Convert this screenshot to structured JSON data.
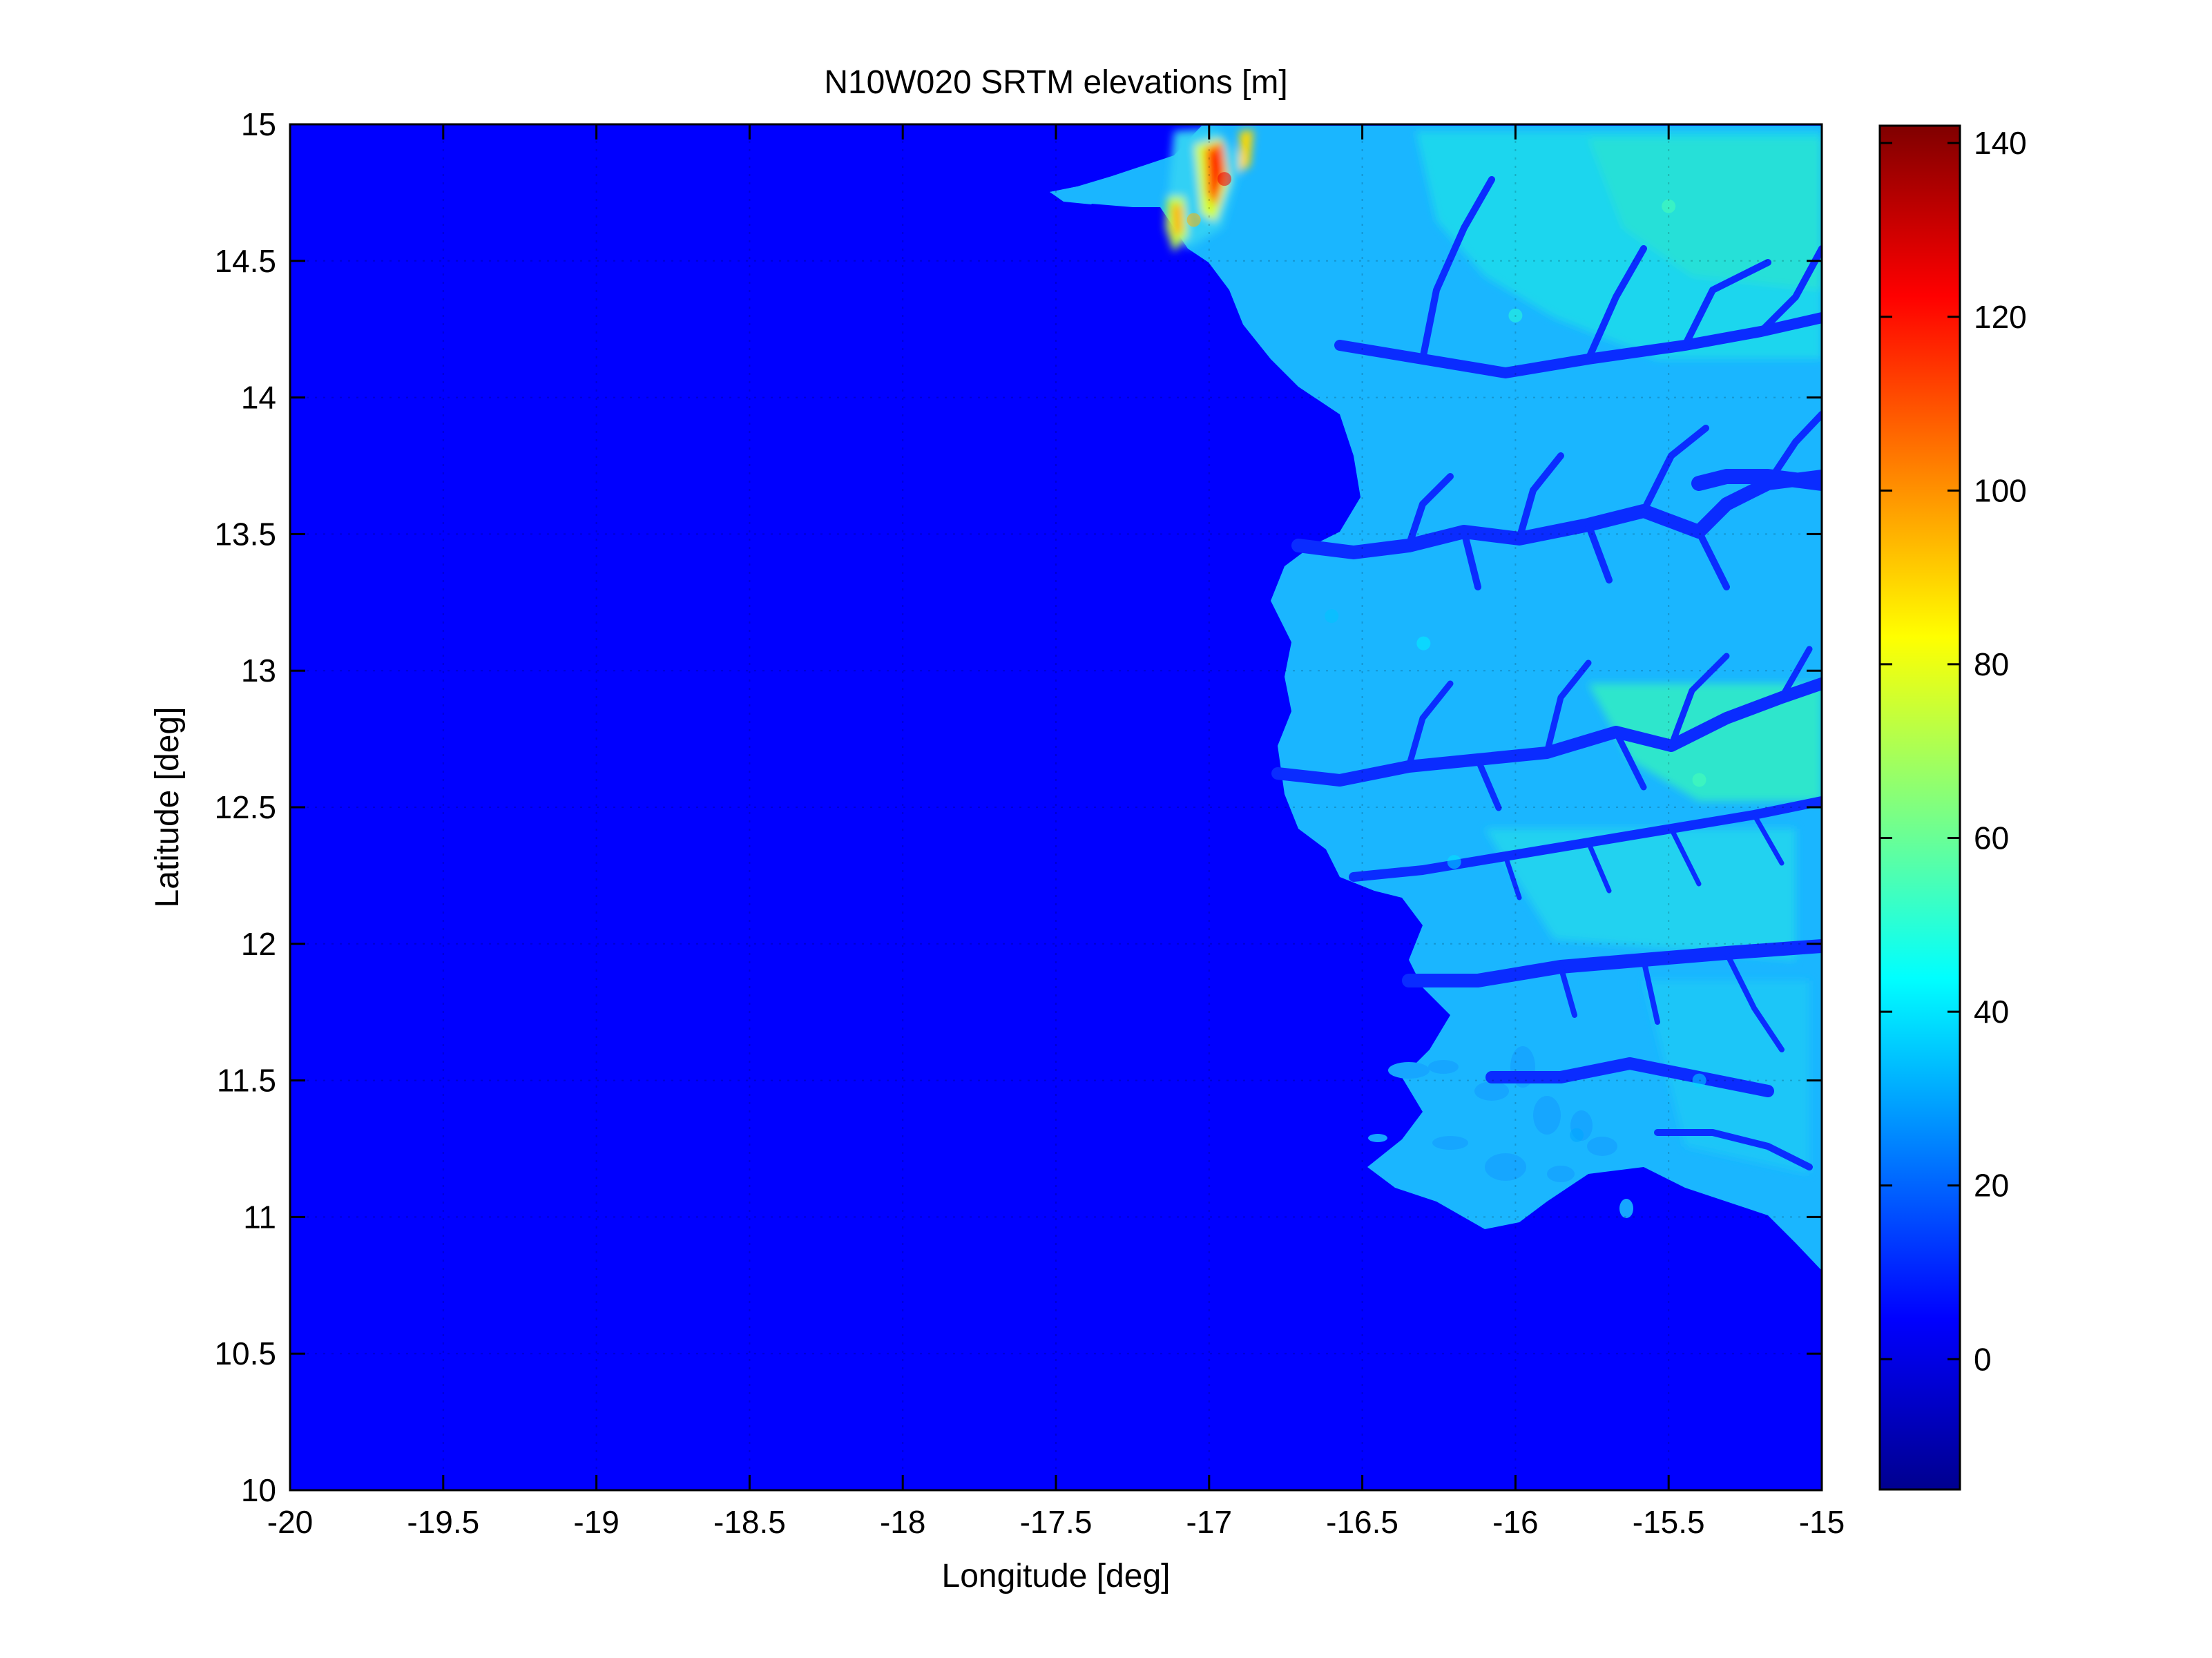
{
  "chart_data": {
    "type": "heatmap",
    "title": "N10W020 SRTM elevations [m]",
    "xlabel": "Longitude [deg]",
    "ylabel": "Latitude [deg]",
    "xlim": [
      -20,
      -15
    ],
    "ylim": [
      10,
      15
    ],
    "x_ticks": [
      -20,
      -19.5,
      -19,
      -18.5,
      -18,
      -17.5,
      -17,
      -16.5,
      -16,
      -15.5,
      -15
    ],
    "x_tick_labels": [
      "-20",
      "-19.5",
      "-19",
      "-18.5",
      "-18",
      "-17.5",
      "-17",
      "-16.5",
      "-16",
      "-15.5",
      "-15"
    ],
    "y_ticks": [
      10,
      10.5,
      11,
      11.5,
      12,
      12.5,
      13,
      13.5,
      14,
      14.5,
      15
    ],
    "y_tick_labels": [
      "10",
      "10.5",
      "11",
      "11.5",
      "12",
      "12.5",
      "13",
      "13.5",
      "14",
      "14.5",
      "15"
    ],
    "colormap": "jet",
    "colorbar": {
      "range": [
        -15,
        142
      ],
      "ticks": [
        0,
        20,
        40,
        60,
        80,
        100,
        120,
        140
      ],
      "tick_labels": [
        "0",
        "20",
        "40",
        "60",
        "80",
        "100",
        "120",
        "140"
      ]
    },
    "ocean_value": 0,
    "grid": true,
    "region_samples": [
      {
        "lon": -16.95,
        "lat": 14.8,
        "elevation": 125
      },
      {
        "lon": -17.05,
        "lat": 14.65,
        "elevation": 95
      },
      {
        "lon": -15.5,
        "lat": 14.7,
        "elevation": 55
      },
      {
        "lon": -16.0,
        "lat": 14.3,
        "elevation": 50
      },
      {
        "lon": -15.4,
        "lat": 12.6,
        "elevation": 55
      },
      {
        "lon": -16.3,
        "lat": 13.1,
        "elevation": 42
      },
      {
        "lon": -16.2,
        "lat": 12.3,
        "elevation": 40
      },
      {
        "lon": -15.4,
        "lat": 11.5,
        "elevation": 38
      },
      {
        "lon": -15.8,
        "lat": 11.3,
        "elevation": 30
      },
      {
        "lon": -16.6,
        "lat": 13.2,
        "elevation": 35
      }
    ]
  }
}
